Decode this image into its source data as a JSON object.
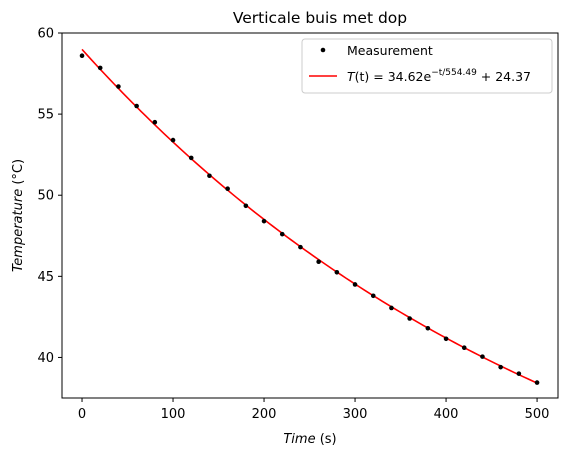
{
  "chart_data": {
    "type": "scatter",
    "title": "Verticale buis met dop",
    "xlabel": {
      "italic": "Time",
      "unit": " (s)"
    },
    "ylabel": {
      "italic": "Temperature",
      "unit": " (°C)"
    },
    "xlim": [
      -22,
      523
    ],
    "ylim": [
      37.5,
      60
    ],
    "x_ticks": [
      0,
      100,
      200,
      300,
      400,
      500
    ],
    "y_ticks": [
      40,
      45,
      50,
      55,
      60
    ],
    "grid": false,
    "legend_position": "top-right",
    "colors": {
      "measurement": "#000000",
      "fit": "#ff0000"
    },
    "series": [
      {
        "name": "Measurement",
        "kind": "points",
        "x": [
          0,
          20,
          40,
          60,
          80,
          100,
          120,
          140,
          160,
          180,
          200,
          220,
          240,
          260,
          280,
          300,
          320,
          340,
          360,
          380,
          400,
          420,
          440,
          460,
          480,
          500
        ],
        "y": [
          58.6,
          57.85,
          56.7,
          55.5,
          54.5,
          53.4,
          52.3,
          51.2,
          50.4,
          49.35,
          48.4,
          47.6,
          46.8,
          45.9,
          45.25,
          44.5,
          43.8,
          43.05,
          42.4,
          41.8,
          41.15,
          40.6,
          40.05,
          39.4,
          39.0,
          38.45
        ]
      },
      {
        "name": "fit",
        "kind": "line",
        "legend_label": {
          "prefix": "T",
          "mid": "(t) = 34.62e",
          "sup": "−t/554.49",
          "suffix": " + 24.37"
        },
        "model": {
          "a": 34.62,
          "tau": 554.49,
          "c": 24.37
        },
        "x_range": [
          0,
          500
        ]
      }
    ],
    "legend": [
      {
        "label": "Measurement",
        "marker": "dot"
      },
      {
        "label_ref": "fit",
        "marker": "line"
      }
    ]
  }
}
